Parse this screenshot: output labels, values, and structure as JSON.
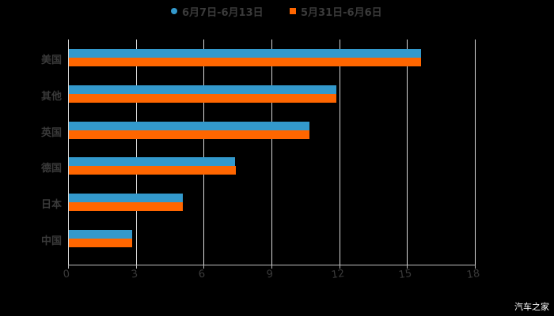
{
  "chart_data": {
    "type": "bar",
    "orientation": "horizontal",
    "title": "",
    "xlabel": "",
    "ylabel": "",
    "categories": [
      "美国",
      "其他",
      "英国",
      "德国",
      "日本",
      "中国"
    ],
    "series": [
      {
        "name": "6月7日-6月13日",
        "color": "#3399cc",
        "values": [
          15.6,
          11.85,
          10.63,
          7.34,
          5.03,
          2.8
        ]
      },
      {
        "name": "5月31日-6月6日",
        "color": "#ff6600",
        "values": [
          15.6,
          11.85,
          10.63,
          7.38,
          5.03,
          2.8
        ]
      }
    ],
    "xlim": [
      0,
      18
    ],
    "xticks": [
      "0",
      "3",
      "6",
      "9",
      "12",
      "15",
      "18"
    ],
    "grid": "vertical",
    "legend_position": "top"
  },
  "legend": {
    "items": [
      {
        "label": "6月7日-6月13日",
        "color": "#3399cc",
        "shape": "circle"
      },
      {
        "label": "5月31日-6月6日",
        "color": "#ff6600",
        "shape": "square"
      }
    ]
  },
  "watermark": "汽车之家"
}
